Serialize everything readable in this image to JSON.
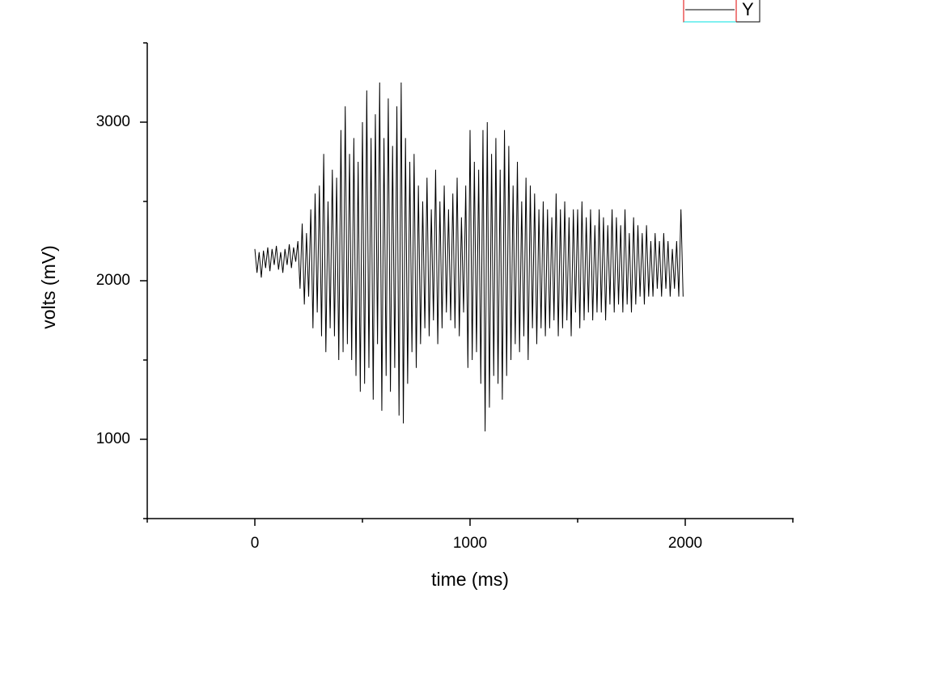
{
  "chart_data": {
    "type": "line",
    "x_label": "time (ms)",
    "y_label": "volts (mV)",
    "xlim": [
      -500,
      2500
    ],
    "xticks": [
      0,
      1000,
      2000
    ],
    "xminorticks": [
      -500,
      500,
      1500,
      2500
    ],
    "ylim": [
      500,
      3500
    ],
    "yticks": [
      1000,
      2000,
      3000
    ],
    "yminorticks": [
      500,
      1500,
      2500,
      3500
    ],
    "x": [
      0,
      10,
      20,
      30,
      40,
      50,
      60,
      70,
      80,
      90,
      100,
      110,
      120,
      130,
      140,
      150,
      160,
      170,
      180,
      190,
      200,
      210,
      220,
      230,
      240,
      250,
      260,
      270,
      280,
      290,
      300,
      310,
      320,
      330,
      340,
      350,
      360,
      370,
      380,
      390,
      400,
      410,
      420,
      430,
      440,
      450,
      460,
      470,
      480,
      490,
      500,
      510,
      520,
      530,
      540,
      550,
      560,
      570,
      580,
      590,
      600,
      610,
      620,
      630,
      640,
      650,
      660,
      670,
      680,
      690,
      700,
      710,
      720,
      730,
      740,
      750,
      760,
      770,
      780,
      790,
      800,
      810,
      820,
      830,
      840,
      850,
      860,
      870,
      880,
      890,
      900,
      910,
      920,
      930,
      940,
      950,
      960,
      970,
      980,
      990,
      1000,
      1010,
      1020,
      1030,
      1040,
      1050,
      1060,
      1070,
      1080,
      1090,
      1100,
      1110,
      1120,
      1130,
      1140,
      1150,
      1160,
      1170,
      1180,
      1190,
      1200,
      1210,
      1220,
      1230,
      1240,
      1250,
      1260,
      1270,
      1280,
      1290,
      1300,
      1310,
      1320,
      1330,
      1340,
      1350,
      1360,
      1370,
      1380,
      1390,
      1400,
      1410,
      1420,
      1430,
      1440,
      1450,
      1460,
      1470,
      1480,
      1490,
      1500,
      1510,
      1520,
      1530,
      1540,
      1550,
      1560,
      1570,
      1580,
      1590,
      1600,
      1610,
      1620,
      1630,
      1640,
      1650,
      1660,
      1670,
      1680,
      1690,
      1700,
      1710,
      1720,
      1730,
      1740,
      1750,
      1760,
      1770,
      1780,
      1790,
      1800,
      1810,
      1820,
      1830,
      1840,
      1850,
      1860,
      1870,
      1880,
      1890,
      1900,
      1910,
      1920,
      1930,
      1940,
      1950,
      1960,
      1970,
      1980,
      1990
    ],
    "series": [
      {
        "name": "Y",
        "color": "#000000",
        "values": [
          2200,
          2050,
          2180,
          2020,
          2190,
          2080,
          2210,
          2060,
          2200,
          2100,
          2220,
          2070,
          2180,
          2050,
          2200,
          2100,
          2230,
          2080,
          2210,
          2120,
          2250,
          1950,
          2360,
          1850,
          2300,
          1900,
          2450,
          1700,
          2550,
          1800,
          2600,
          1650,
          2800,
          1550,
          2500,
          1700,
          2700,
          1650,
          2650,
          1500,
          2950,
          1550,
          3100,
          1600,
          2800,
          1500,
          2900,
          1400,
          2750,
          1300,
          3000,
          1350,
          3200,
          1450,
          2900,
          1250,
          3050,
          1600,
          3250,
          1180,
          2900,
          1400,
          3150,
          1300,
          2850,
          1450,
          3100,
          1150,
          3250,
          1100,
          2900,
          1350,
          2750,
          1550,
          2800,
          1450,
          2600,
          1600,
          2500,
          1700,
          2650,
          1650,
          2450,
          1750,
          2700,
          1600,
          2500,
          1700,
          2600,
          1800,
          2450,
          1750,
          2550,
          1700,
          2650,
          1650,
          2400,
          1800,
          2600,
          1450,
          2950,
          1500,
          2750,
          1550,
          2700,
          1350,
          2950,
          1050,
          3000,
          1200,
          2800,
          1400,
          2900,
          1350,
          2700,
          1250,
          2950,
          1400,
          2850,
          1500,
          2600,
          1600,
          2750,
          1550,
          2500,
          1650,
          2650,
          1500,
          2600,
          1700,
          2550,
          1600,
          2450,
          1700,
          2500,
          1650,
          2450,
          1700,
          2400,
          1750,
          2550,
          1650,
          2450,
          1700,
          2500,
          1750,
          2400,
          1650,
          2450,
          1800,
          2450,
          1700,
          2500,
          1750,
          2400,
          1800,
          2450,
          1750,
          2350,
          1800,
          2450,
          1800,
          2400,
          1750,
          2350,
          1850,
          2450,
          1800,
          2400,
          1850,
          2350,
          1800,
          2450,
          1850,
          2300,
          1800,
          2400,
          1850,
          2350,
          1900,
          2300,
          1850,
          2350,
          1900,
          2250,
          1900,
          2300,
          1950,
          2250,
          1900,
          2300,
          1950,
          2250,
          1900,
          2200,
          1950,
          2250,
          1900,
          2450,
          1900
        ]
      }
    ]
  }
}
